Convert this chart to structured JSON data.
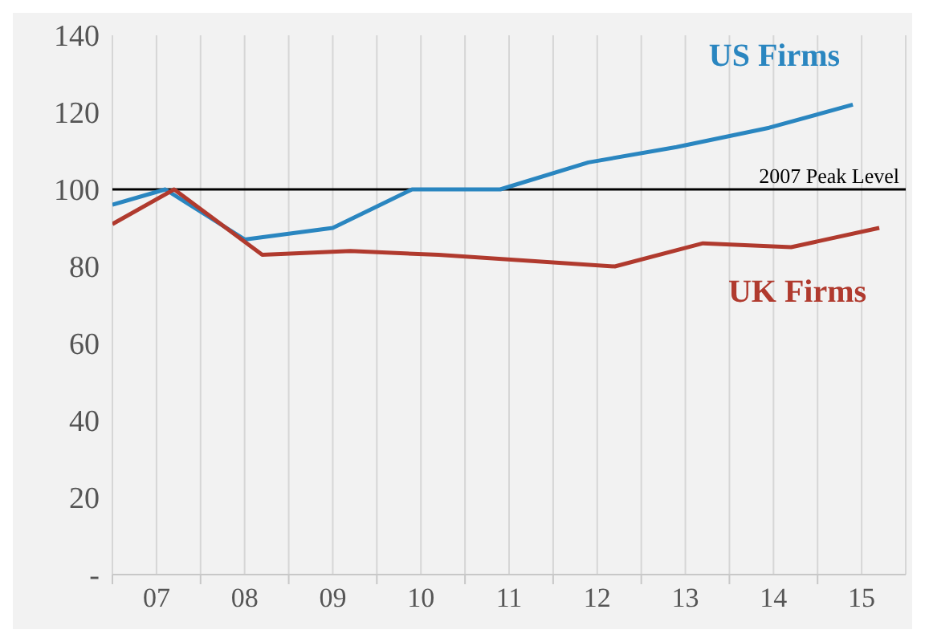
{
  "chart_data": {
    "type": "line",
    "xlim": [
      2006.5,
      2015.5
    ],
    "xticks": [
      {
        "value": 2006.5,
        "label": null
      },
      {
        "value": 2007,
        "label": "07"
      },
      {
        "value": 2007.5,
        "label": null
      },
      {
        "value": 2008,
        "label": "08"
      },
      {
        "value": 2008.5,
        "label": null
      },
      {
        "value": 2009,
        "label": "09"
      },
      {
        "value": 2009.5,
        "label": null
      },
      {
        "value": 2010,
        "label": "10"
      },
      {
        "value": 2010.5,
        "label": null
      },
      {
        "value": 2011,
        "label": "11"
      },
      {
        "value": 2011.5,
        "label": null
      },
      {
        "value": 2012,
        "label": "12"
      },
      {
        "value": 2012.5,
        "label": null
      },
      {
        "value": 2013,
        "label": "13"
      },
      {
        "value": 2013.5,
        "label": null
      },
      {
        "value": 2014,
        "label": "14"
      },
      {
        "value": 2014.5,
        "label": null
      },
      {
        "value": 2015,
        "label": "15"
      }
    ],
    "ylim": [
      0,
      140
    ],
    "yticks": [
      {
        "value": 0,
        "label": "-"
      },
      20,
      40,
      60,
      80,
      100,
      120,
      140
    ],
    "grid": "x",
    "marker": "none",
    "line_style": "solid",
    "series": [
      {
        "name": "US Firms",
        "color": "#2a86c0",
        "x": [
          2006.5,
          2007.1,
          2008.0,
          2009.0,
          2009.9,
          2010.9,
          2011.9,
          2012.9,
          2013.95,
          2014.9
        ],
        "values": [
          96,
          100,
          87,
          90,
          100,
          100,
          107,
          111,
          116,
          122
        ]
      },
      {
        "name": "UK Firms",
        "color": "#b03a2e",
        "x": [
          2006.5,
          2007.2,
          2008.2,
          2009.2,
          2010.2,
          2012.2,
          2013.2,
          2014.2,
          2015.2
        ],
        "values": [
          91,
          100,
          83,
          84,
          83,
          80,
          86,
          85,
          90
        ]
      }
    ],
    "ref_lines": [
      {
        "axis": "y",
        "value": 100,
        "label": "2007 Peak Level",
        "color": "#000000"
      }
    ]
  }
}
